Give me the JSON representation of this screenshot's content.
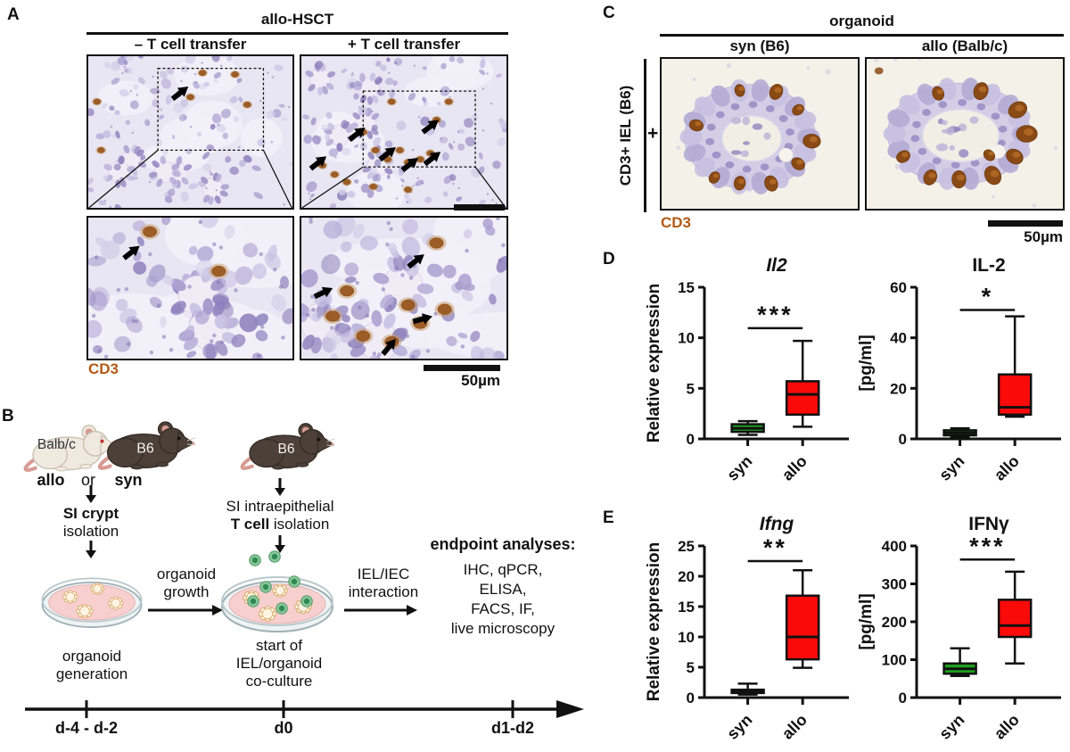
{
  "colors": {
    "green": "#1fa11f",
    "red": "#fb0a0a",
    "stain_brown": "#b25a17"
  },
  "panel_a": {
    "letter": "A",
    "header": "allo-HSCT",
    "col_left": "– T cell transfer",
    "col_right": "+ T cell transfer",
    "stain": "CD3",
    "scalebar": "50µm"
  },
  "panel_b": {
    "letter": "B",
    "mouse_white_label": "Balb/c",
    "mouse_dark_label": "B6",
    "mouse_dark2_label": "B6",
    "allo": "allo",
    "or": "or",
    "syn": "syn",
    "crypt_bold": "SI crypt",
    "crypt_rest": "isolation",
    "iel_line1": "SI intraepithelial",
    "iel_bold": "T cell",
    "iel_rest": " isolation",
    "growth_l1": "organoid",
    "growth_l2": "growth",
    "interaction_l1": "IEL/IEC",
    "interaction_l2": "interaction",
    "gen_l1": "organoid",
    "gen_l2": "generation",
    "coculture_l1": "start of",
    "coculture_l2": "IEL/organoid",
    "coculture_l3": "co-culture",
    "endpoint_title": "endpoint analyses:",
    "endpoint_items": [
      "IHC, qPCR,",
      "ELISA,",
      "FACS, IF,",
      "live microscopy"
    ],
    "timeline": [
      "d-4 - d-2",
      "d0",
      "d1-d2"
    ]
  },
  "panel_c": {
    "letter": "C",
    "header": "organoid",
    "col_left": "syn (B6)",
    "col_right": "allo (Balb/c)",
    "row_label": "CD3+ IEL (B6)",
    "plus": "+",
    "stain": "CD3",
    "scalebar": "50µm"
  },
  "panel_d": {
    "letter": "D"
  },
  "panel_e": {
    "letter": "E"
  },
  "chart_data": [
    {
      "id": "il2",
      "type": "box",
      "title": "Il2",
      "title_italic": true,
      "ylabel": "Relative expression",
      "ylim": [
        0,
        15
      ],
      "yticks": [
        0,
        5,
        10,
        15
      ],
      "categories": [
        "syn",
        "allo"
      ],
      "significance": "***",
      "sig_y_frac": 0.27,
      "legend_position": "none",
      "grid": false,
      "series": [
        {
          "name": "syn",
          "color": "#1fa11f",
          "whislo": 0.4,
          "q1": 0.7,
          "med": 1.05,
          "q3": 1.45,
          "whishi": 1.75
        },
        {
          "name": "allo",
          "color": "#fb0a0a",
          "whislo": 1.2,
          "q1": 2.4,
          "med": 4.4,
          "q3": 5.7,
          "whishi": 9.7
        }
      ]
    },
    {
      "id": "il2p",
      "type": "box",
      "title": "IL-2",
      "title_italic": false,
      "ylabel": "[pg/ml]",
      "ylim": [
        0,
        60
      ],
      "yticks": [
        0,
        20,
        40,
        60
      ],
      "categories": [
        "syn",
        "allo"
      ],
      "significance": "*",
      "sig_y_frac": 0.15,
      "legend_position": "none",
      "grid": false,
      "series": [
        {
          "name": "syn",
          "color": "#1fa11f",
          "whislo": 0.8,
          "q1": 1.4,
          "med": 2.4,
          "q3": 3.4,
          "whishi": 4.2
        },
        {
          "name": "allo",
          "color": "#fb0a0a",
          "whislo": 8.8,
          "q1": 9.6,
          "med": 12.5,
          "q3": 25.5,
          "whishi": 48.5
        }
      ]
    },
    {
      "id": "ifng",
      "type": "box",
      "title": "Ifng",
      "title_italic": true,
      "ylabel": "Relative expression",
      "ylim": [
        0,
        25
      ],
      "yticks": [
        0,
        5,
        10,
        15,
        20,
        25
      ],
      "categories": [
        "syn",
        "allo"
      ],
      "significance": "**",
      "sig_y_frac": 0.1,
      "legend_position": "none",
      "grid": false,
      "series": [
        {
          "name": "syn",
          "color": "#1fa11f",
          "whislo": 0.5,
          "q1": 0.75,
          "med": 1.0,
          "q3": 1.3,
          "whishi": 2.3
        },
        {
          "name": "allo",
          "color": "#fb0a0a",
          "whislo": 4.9,
          "q1": 6.3,
          "med": 10.0,
          "q3": 16.8,
          "whishi": 21.0
        }
      ]
    },
    {
      "id": "ifngp",
      "type": "box",
      "title": "IFNγ",
      "title_italic": false,
      "ylabel": "[pg/ml]",
      "ylim": [
        0,
        400
      ],
      "yticks": [
        0,
        100,
        200,
        300,
        400
      ],
      "categories": [
        "syn",
        "allo"
      ],
      "significance": "***",
      "sig_y_frac": 0.09,
      "legend_position": "none",
      "grid": false,
      "series": [
        {
          "name": "syn",
          "color": "#1fa11f",
          "whislo": 57,
          "q1": 63,
          "med": 76,
          "q3": 90,
          "whishi": 130
        },
        {
          "name": "allo",
          "color": "#fb0a0a",
          "whislo": 90,
          "q1": 160,
          "med": 190,
          "q3": 258,
          "whishi": 332
        }
      ]
    }
  ]
}
